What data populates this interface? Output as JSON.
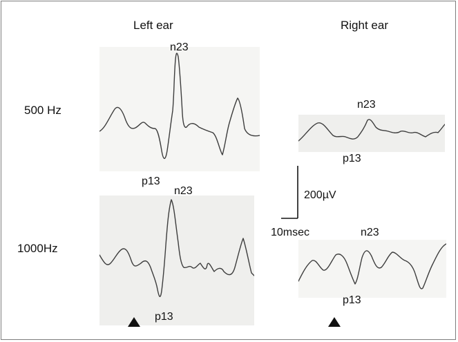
{
  "figure": {
    "column_labels": {
      "left": "Left ear",
      "right": "Right ear"
    },
    "row_labels": {
      "top": "500 Hz",
      "bottom": "1000Hz"
    },
    "peak_labels": {
      "left_500_peak": "n23",
      "left_500_trough": "p13",
      "right_500_peak": "n23",
      "right_500_trough": "p13",
      "left_1000_peak": "n23",
      "left_1000_trough": "p13",
      "right_1000_peak": "n23",
      "right_1000_trough": "p13"
    },
    "scale_bar": {
      "amplitude": "200µV",
      "time": "10msec"
    },
    "stimulus_marker_icon": "triangle-up-icon",
    "colors": {
      "trace": "#3d3d3d",
      "background": "#ffffff",
      "frame": "#7d7d7d"
    }
  }
}
